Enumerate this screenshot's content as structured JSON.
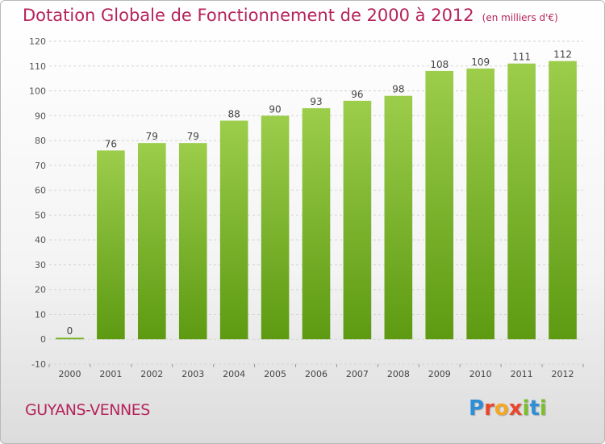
{
  "chart_data": {
    "type": "bar",
    "title": "Dotation Globale de Fonctionnement de 2000 à 2012",
    "unit_label": "(en milliers d'€)",
    "categories": [
      "2000",
      "2001",
      "2002",
      "2003",
      "2004",
      "2005",
      "2006",
      "2007",
      "2008",
      "2009",
      "2010",
      "2011",
      "2012"
    ],
    "values": [
      0,
      76,
      79,
      79,
      88,
      90,
      93,
      96,
      98,
      108,
      109,
      111,
      112
    ],
    "data_labels": [
      "0",
      "76",
      "79",
      "79",
      "88",
      "90",
      "93",
      "96",
      "98",
      "108",
      "109",
      "111",
      "112"
    ],
    "ylim": [
      -10,
      120
    ],
    "yticks": [
      -10,
      0,
      10,
      20,
      30,
      40,
      50,
      60,
      70,
      80,
      90,
      100,
      110,
      120
    ],
    "grid": true,
    "bar_color_top": "#9ccd4b",
    "bar_color_bottom": "#5d9a12"
  },
  "commune": "GUYANS-VENNES",
  "logo": {
    "letters": [
      "P",
      "r",
      "o",
      "x",
      "i",
      "t",
      "i"
    ],
    "colors": [
      "#2f8fd6",
      "#e8472d",
      "#f5a623",
      "#e8472d",
      "#7bbf2e",
      "#2f8fd6",
      "#7bbf2e"
    ]
  }
}
